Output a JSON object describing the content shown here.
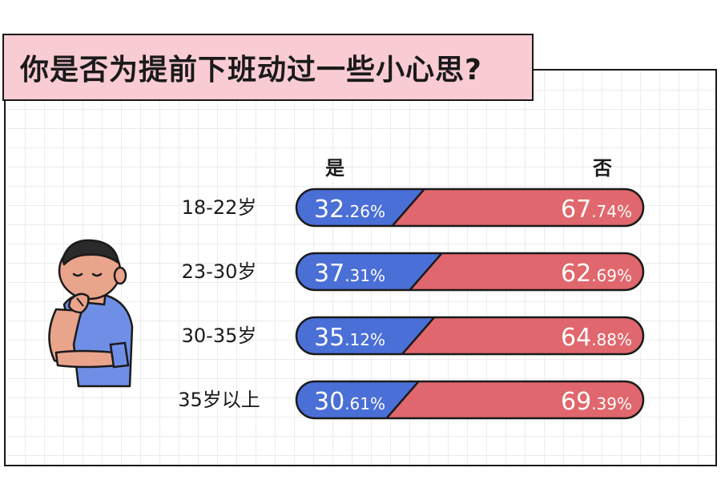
{
  "title": "你是否为提前下班动过一些小心思?",
  "column_headers": {
    "yes": "是",
    "no": "否"
  },
  "colors": {
    "yes": "#4a6fd6",
    "no": "#e0676d",
    "title_bg": "#f9cbd3",
    "outline": "#1a1a1a"
  },
  "chart_data": {
    "type": "bar",
    "stacked": true,
    "orientation": "horizontal",
    "categories": [
      "18-22岁",
      "23-30岁",
      "30-35岁",
      "35岁以上"
    ],
    "series": [
      {
        "name": "是",
        "values": [
          32.26,
          37.31,
          35.12,
          30.61
        ],
        "color": "#4a6fd6"
      },
      {
        "name": "否",
        "values": [
          67.74,
          62.69,
          64.88,
          69.39
        ],
        "color": "#e0676d"
      }
    ],
    "labels": [
      {
        "yes_int": "32",
        "yes_dec": ".26%",
        "no_int": "67",
        "no_dec": ".74%"
      },
      {
        "yes_int": "37",
        "yes_dec": ".31%",
        "no_int": "62",
        "no_dec": ".69%"
      },
      {
        "yes_int": "35",
        "yes_dec": ".12%",
        "no_int": "64",
        "no_dec": ".88%"
      },
      {
        "yes_int": "30",
        "yes_dec": ".61%",
        "no_int": "69",
        "no_dec": ".39%"
      }
    ]
  }
}
